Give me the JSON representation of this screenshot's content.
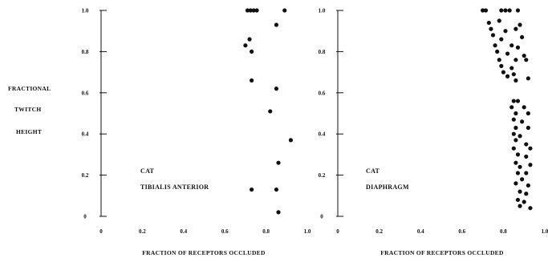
{
  "ylabel_lines": [
    "FRACTIONAL",
    "TWITCH",
    "HEIGHT"
  ],
  "colors": {
    "ink": "#111111",
    "background": "#ffffff"
  },
  "chart_data": [
    {
      "type": "scatter",
      "annotation_lines": [
        "CAT",
        "TIBIALIS ANTERIOR"
      ],
      "xlabel": "FRACTION OF RECEPTORS OCCLUDED",
      "ylabel": "FRACTIONAL TWITCH HEIGHT",
      "xlim": [
        0,
        1.0
      ],
      "ylim": [
        0,
        1.0
      ],
      "xticks": [
        "0",
        "0.2",
        "0.4",
        "0.6",
        "0.8",
        "1.0"
      ],
      "yticks": [
        "0",
        "0.2",
        "0.4",
        "0.6",
        "0.8",
        "1.0"
      ],
      "grid": false,
      "points": [
        [
          0.71,
          1.0
        ],
        [
          0.725,
          1.0
        ],
        [
          0.74,
          1.0
        ],
        [
          0.755,
          1.0
        ],
        [
          0.89,
          1.0
        ],
        [
          0.85,
          0.93
        ],
        [
          0.72,
          0.86
        ],
        [
          0.7,
          0.83
        ],
        [
          0.73,
          0.8
        ],
        [
          0.73,
          0.66
        ],
        [
          0.85,
          0.62
        ],
        [
          0.82,
          0.51
        ],
        [
          0.92,
          0.37
        ],
        [
          0.86,
          0.26
        ],
        [
          0.73,
          0.13
        ],
        [
          0.85,
          0.13
        ],
        [
          0.86,
          0.02
        ]
      ]
    },
    {
      "type": "scatter",
      "annotation_lines": [
        "CAT",
        "DIAPHRAGM"
      ],
      "xlabel": "FRACTION OF RECEPTORS OCCLUDED",
      "ylabel": "FRACTIONAL TWITCH HEIGHT",
      "xlim": [
        0,
        1.0
      ],
      "ylim": [
        0,
        1.0
      ],
      "xticks": [
        "0",
        "0.2",
        "0.4",
        "0.6",
        "0.8",
        "1.0"
      ],
      "yticks": [
        "0",
        "0.2",
        "0.4",
        "0.6",
        "0.8",
        "1.0"
      ],
      "grid": false,
      "points": [
        [
          0.7,
          1.0
        ],
        [
          0.715,
          1.0
        ],
        [
          0.79,
          1.0
        ],
        [
          0.81,
          1.0
        ],
        [
          0.83,
          1.0
        ],
        [
          0.87,
          1.0
        ],
        [
          0.73,
          0.94
        ],
        [
          0.78,
          0.95
        ],
        [
          0.88,
          0.93
        ],
        [
          0.74,
          0.91
        ],
        [
          0.81,
          0.9
        ],
        [
          0.86,
          0.91
        ],
        [
          0.75,
          0.88
        ],
        [
          0.79,
          0.86
        ],
        [
          0.89,
          0.87
        ],
        [
          0.76,
          0.83
        ],
        [
          0.84,
          0.83
        ],
        [
          0.87,
          0.82
        ],
        [
          0.77,
          0.8
        ],
        [
          0.82,
          0.79
        ],
        [
          0.9,
          0.78
        ],
        [
          0.78,
          0.76
        ],
        [
          0.86,
          0.76
        ],
        [
          0.91,
          0.76
        ],
        [
          0.79,
          0.73
        ],
        [
          0.84,
          0.72
        ],
        [
          0.8,
          0.7
        ],
        [
          0.85,
          0.69
        ],
        [
          0.82,
          0.68
        ],
        [
          0.92,
          0.67
        ],
        [
          0.86,
          0.66
        ],
        [
          0.85,
          0.56
        ],
        [
          0.87,
          0.56
        ],
        [
          0.84,
          0.53
        ],
        [
          0.9,
          0.53
        ],
        [
          0.86,
          0.5
        ],
        [
          0.92,
          0.5
        ],
        [
          0.85,
          0.47
        ],
        [
          0.89,
          0.46
        ],
        [
          0.86,
          0.43
        ],
        [
          0.92,
          0.43
        ],
        [
          0.85,
          0.4
        ],
        [
          0.88,
          0.39
        ],
        [
          0.86,
          0.37
        ],
        [
          0.91,
          0.35
        ],
        [
          0.85,
          0.33
        ],
        [
          0.93,
          0.33
        ],
        [
          0.87,
          0.3
        ],
        [
          0.91,
          0.29
        ],
        [
          0.86,
          0.26
        ],
        [
          0.88,
          0.24
        ],
        [
          0.93,
          0.25
        ],
        [
          0.87,
          0.21
        ],
        [
          0.91,
          0.21
        ],
        [
          0.89,
          0.18
        ],
        [
          0.86,
          0.16
        ],
        [
          0.92,
          0.15
        ],
        [
          0.88,
          0.12
        ],
        [
          0.91,
          0.11
        ],
        [
          0.87,
          0.08
        ],
        [
          0.9,
          0.07
        ],
        [
          0.88,
          0.05
        ],
        [
          0.93,
          0.04
        ]
      ]
    }
  ]
}
